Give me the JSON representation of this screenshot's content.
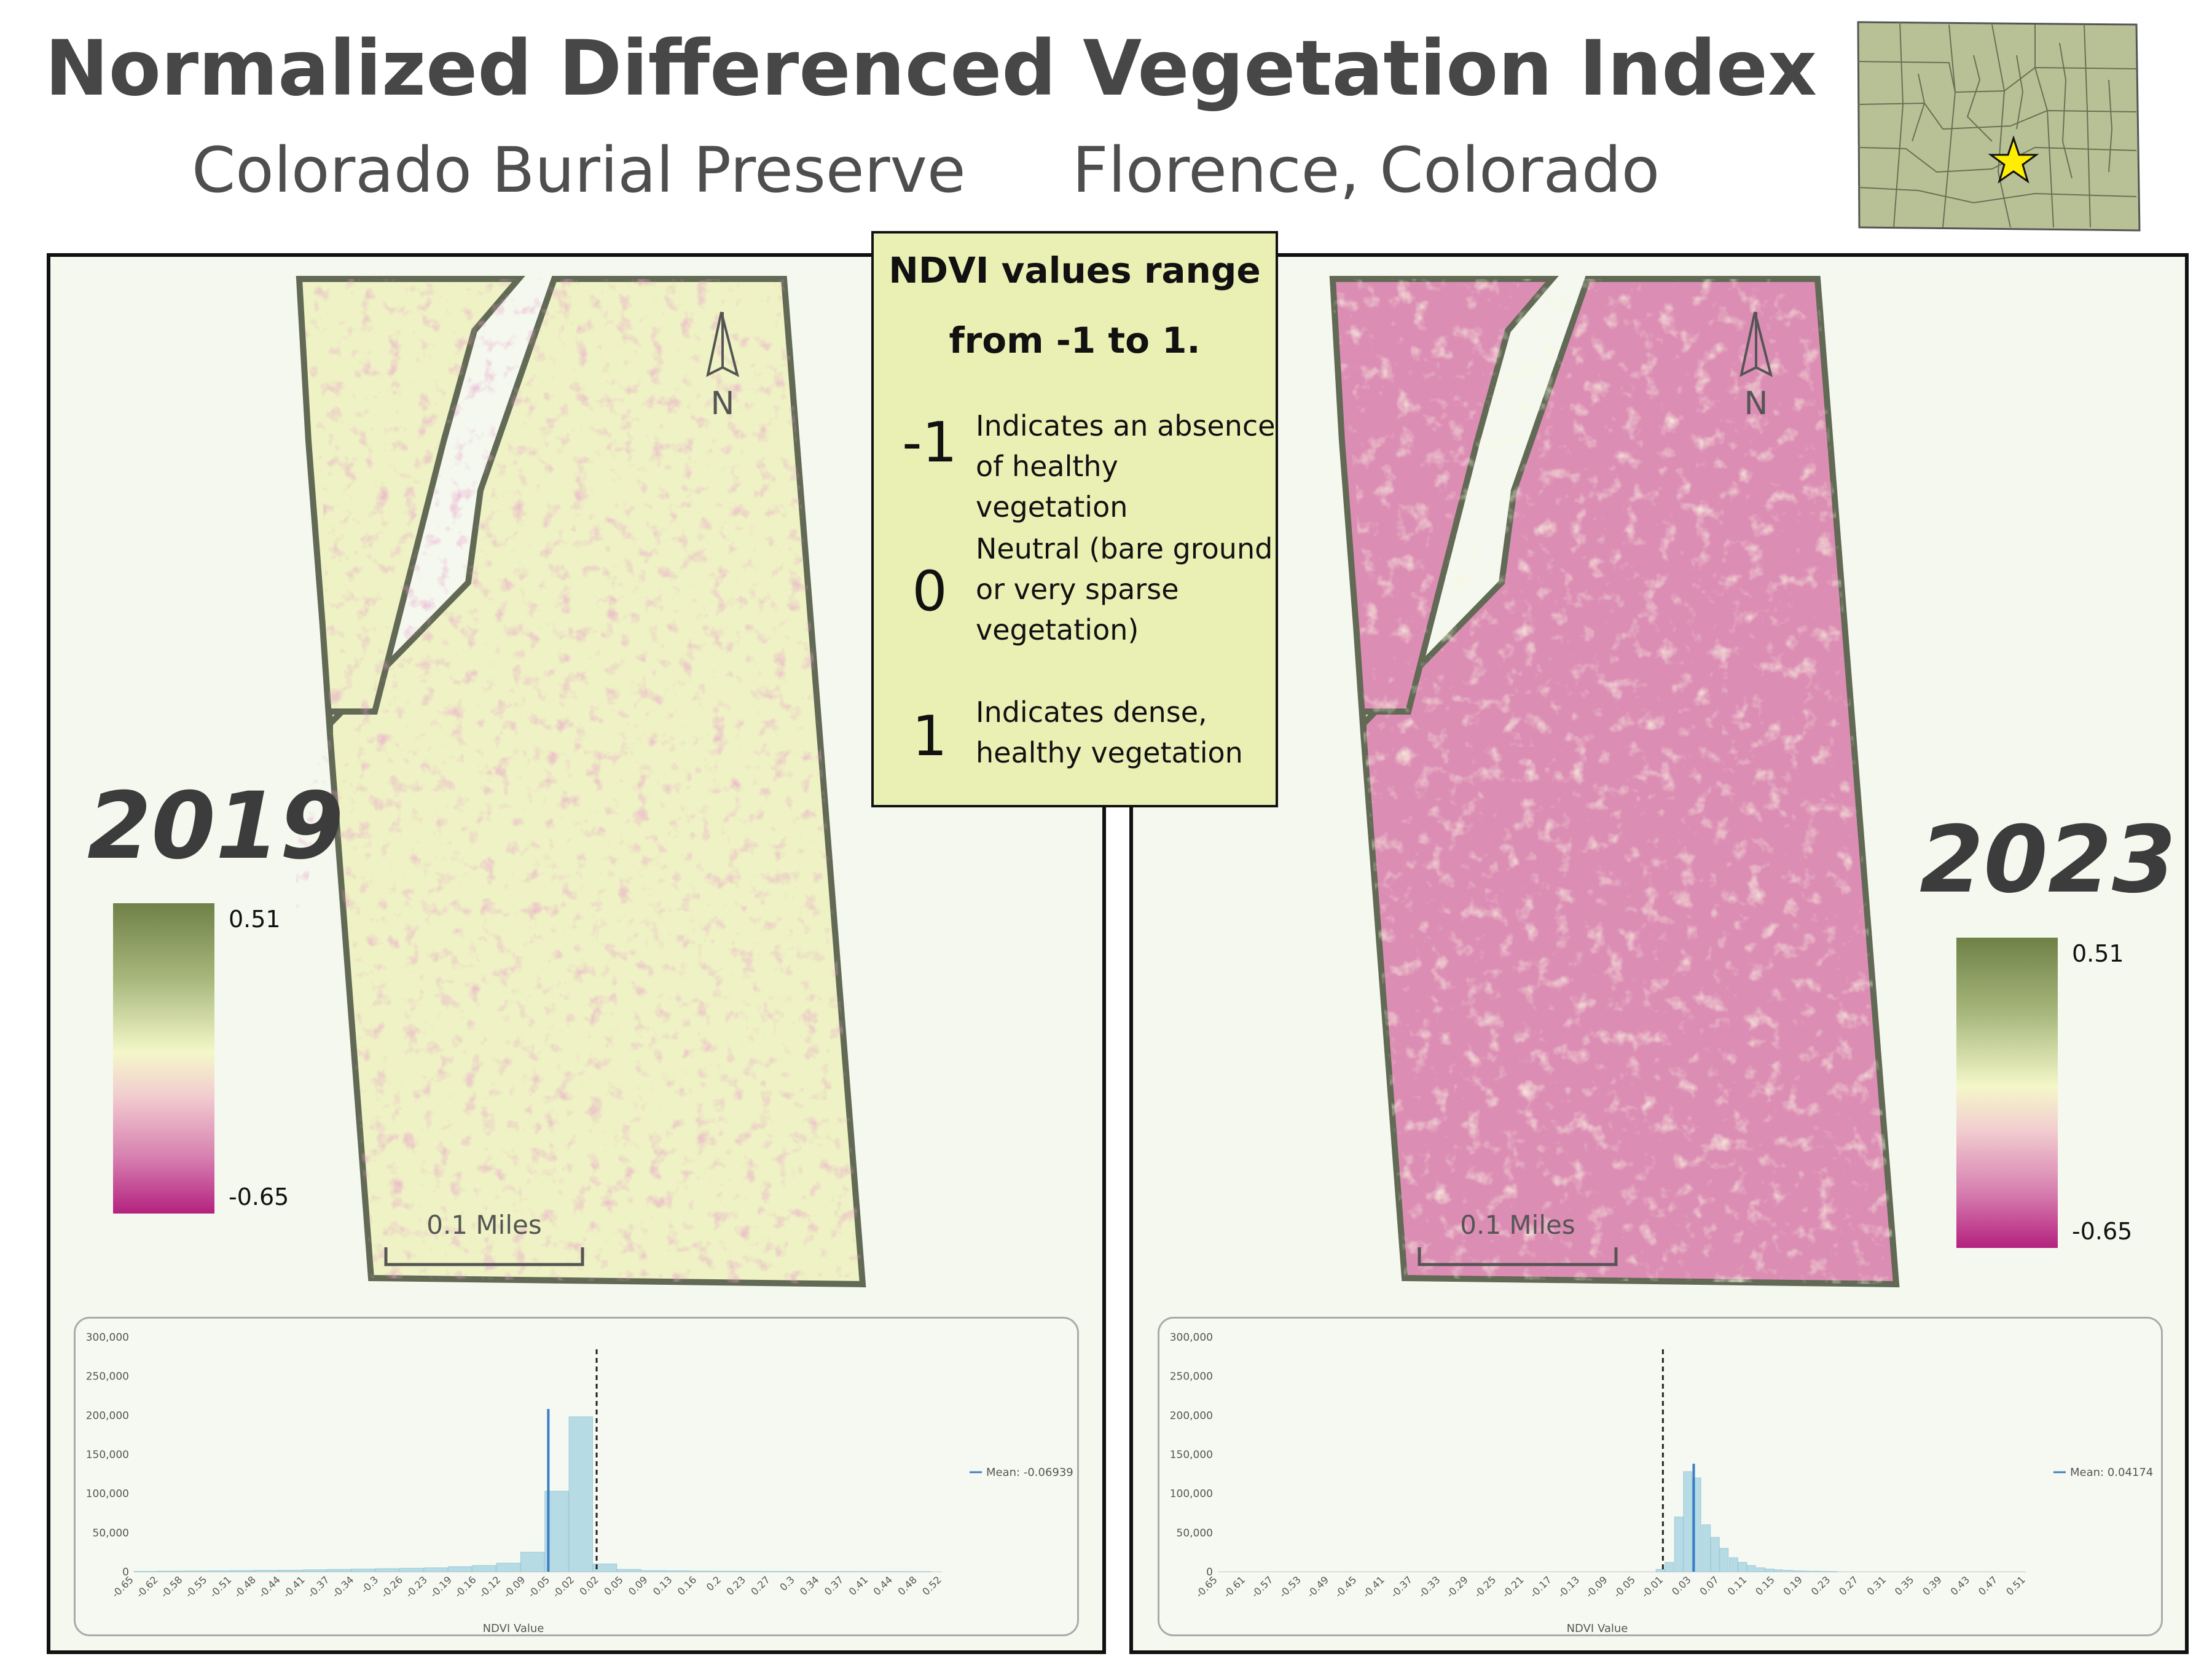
{
  "title": "Normalized Differenced Vegetation Index",
  "subtitle_left": "Colorado Burial Preserve",
  "subtitle_right": "Florence, Colorado",
  "legend": {
    "heading_line1": "NDVI values range",
    "heading_line2": "from -1 to 1.",
    "items": [
      {
        "value": "-1",
        "text_lines": [
          "Indicates an absence",
          "of healthy vegetation"
        ]
      },
      {
        "value": "0",
        "text_lines": [
          "Neutral (bare ground",
          "or very sparse",
          "vegetation)"
        ]
      },
      {
        "value": "1",
        "text_lines": [
          "Indicates dense,",
          "healthy vegetation"
        ]
      }
    ]
  },
  "colors": {
    "ramp_high": "#6f8147",
    "ramp_mid": "#f4f7c9",
    "ramp_low": "#b4217f",
    "map_2019_base": "#eef2c4",
    "map_2023_base": "#dc8db4",
    "inset_fill": "#b8c195",
    "star": "#ffee00"
  },
  "north_label": "N",
  "scale_label": "0.1 Miles",
  "panels": [
    {
      "year": "2019",
      "ramp_max": "0.51",
      "ramp_min": "-0.65",
      "histogram": {
        "y_ticks": [
          "300,000",
          "250,000",
          "200,000",
          "150,000",
          "100,000",
          "50,000",
          "0"
        ],
        "x_ticks": [
          "-0.65",
          "-0.62",
          "-0.58",
          "-0.55",
          "-0.51",
          "-0.48",
          "-0.44",
          "-0.41",
          "-0.37",
          "-0.34",
          "-0.3",
          "-0.26",
          "-0.23",
          "-0.19",
          "-0.16",
          "-0.12",
          "-0.09",
          "-0.05",
          "-0.02",
          "0.02",
          "0.05",
          "0.09",
          "0.13",
          "0.16",
          "0.2",
          "0.23",
          "0.27",
          "0.3",
          "0.34",
          "0.37",
          "0.41",
          "0.44",
          "0.48",
          "0.52"
        ],
        "x_label": "NDVI Value",
        "mean_label": "Mean: -0.06939",
        "chart_data": {
          "type": "bar",
          "x_min": -0.65,
          "x_max": 0.52,
          "ylim": [
            0,
            300000
          ],
          "bin_width": 0.035,
          "bin_starts": [
            -0.65,
            -0.615,
            -0.58,
            -0.545,
            -0.51,
            -0.475,
            -0.44,
            -0.405,
            -0.37,
            -0.335,
            -0.3,
            -0.265,
            -0.23,
            -0.195,
            -0.16,
            -0.125,
            -0.09,
            -0.055,
            -0.02,
            0.015,
            0.05,
            0.085,
            0.12,
            0.155,
            0.19,
            0.225,
            0.26,
            0.295,
            0.33,
            0.365,
            0.4,
            0.435,
            0.47
          ],
          "counts": [
            500,
            800,
            1000,
            1200,
            1500,
            1800,
            2000,
            2500,
            3000,
            3500,
            4000,
            4500,
            5000,
            6500,
            8000,
            11000,
            25000,
            103000,
            198000,
            10000,
            3000,
            1500,
            1200,
            900,
            700,
            600,
            500,
            400,
            300,
            200,
            200,
            150,
            100
          ],
          "mean": -0.06939,
          "peak_line_x": -0.05,
          "peak_line_y": 208000,
          "zero_line_x": 0.02
        }
      }
    },
    {
      "year": "2023",
      "ramp_max": "0.51",
      "ramp_min": "-0.65",
      "histogram": {
        "y_ticks": [
          "300,000",
          "250,000",
          "200,000",
          "150,000",
          "100,000",
          "50,000",
          "0"
        ],
        "x_ticks": [
          "-0.65",
          "-0.61",
          "-0.57",
          "-0.53",
          "-0.49",
          "-0.45",
          "-0.41",
          "-0.37",
          "-0.33",
          "-0.29",
          "-0.25",
          "-0.21",
          "-0.17",
          "-0.13",
          "-0.09",
          "-0.05",
          "-0.01",
          "0.03",
          "0.07",
          "0.11",
          "0.15",
          "0.19",
          "0.23",
          "0.27",
          "0.31",
          "0.35",
          "0.39",
          "0.43",
          "0.47",
          "0.51"
        ],
        "x_label": "NDVI Value",
        "mean_label": "Mean: 0.04174",
        "chart_data": {
          "type": "bar",
          "x_min": -0.65,
          "x_max": 0.53,
          "ylim": [
            0,
            300000
          ],
          "bin_width": 0.0133,
          "bin_starts": [
            -0.01,
            0.003,
            0.017,
            0.03,
            0.043,
            0.057,
            0.07,
            0.083,
            0.097,
            0.11,
            0.123,
            0.137,
            0.15,
            0.163,
            0.177,
            0.19,
            0.203,
            0.217,
            0.23,
            0.243
          ],
          "counts": [
            3000,
            12000,
            70000,
            128000,
            120000,
            60000,
            44000,
            30000,
            18000,
            12000,
            8000,
            5000,
            3500,
            2500,
            1800,
            1200,
            900,
            700,
            500,
            300
          ],
          "mean": 0.04174,
          "peak_line_x": 0.045,
          "peak_line_y": 138000,
          "zero_line_x": 0.0
        }
      }
    }
  ]
}
